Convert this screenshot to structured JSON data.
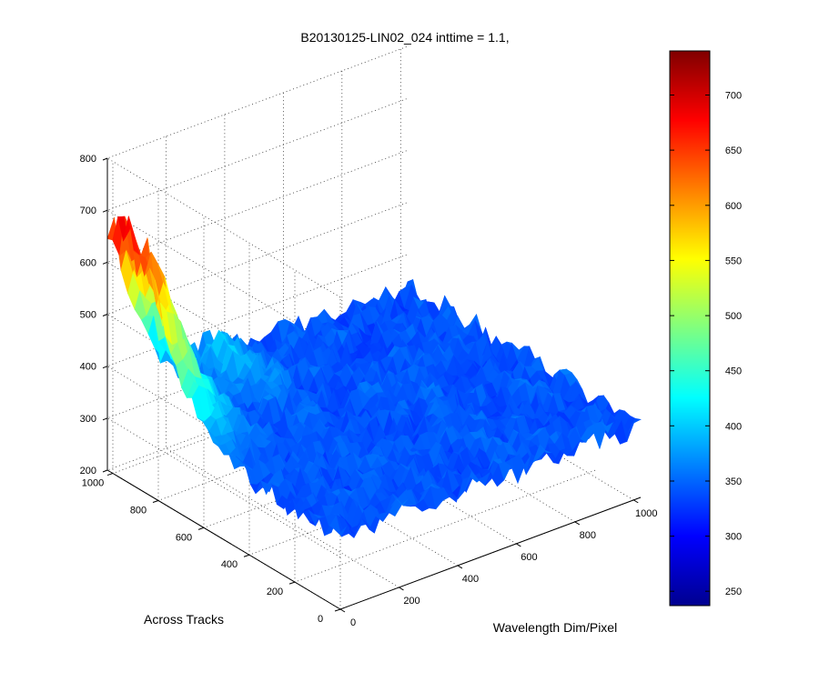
{
  "chart_data": {
    "type": "surface",
    "title": "B20130125-LIN02_024 inttime = 1.1,",
    "x_label": "Wavelength Dim/Pixel",
    "y_label": "Across Tracks",
    "z_label": "",
    "x_range": [
      0,
      1024
    ],
    "y_range": [
      0,
      1024
    ],
    "z_range": [
      200,
      800
    ],
    "x_ticks": [
      "0",
      "200",
      "400",
      "600",
      "800",
      "1000"
    ],
    "y_ticks": [
      "0",
      "200",
      "400",
      "600",
      "800",
      "1000"
    ],
    "z_ticks": [
      "200",
      "300",
      "400",
      "500",
      "600",
      "700",
      "800"
    ],
    "grid": true,
    "colormap": "jet",
    "colorbar": {
      "range": [
        237,
        740
      ],
      "ticks": [
        "250",
        "300",
        "350",
        "400",
        "450",
        "500",
        "550",
        "600",
        "650",
        "700"
      ]
    },
    "baseline_value": 340,
    "peak_value": 720,
    "peak_location": {
      "x": 0,
      "y": 950
    },
    "colors": {
      "low": "#00008f",
      "mid_low": "#0080ff",
      "mid": "#00ffff",
      "mid_high": "#ffff00",
      "high": "#ff0000",
      "max": "#800000"
    }
  }
}
